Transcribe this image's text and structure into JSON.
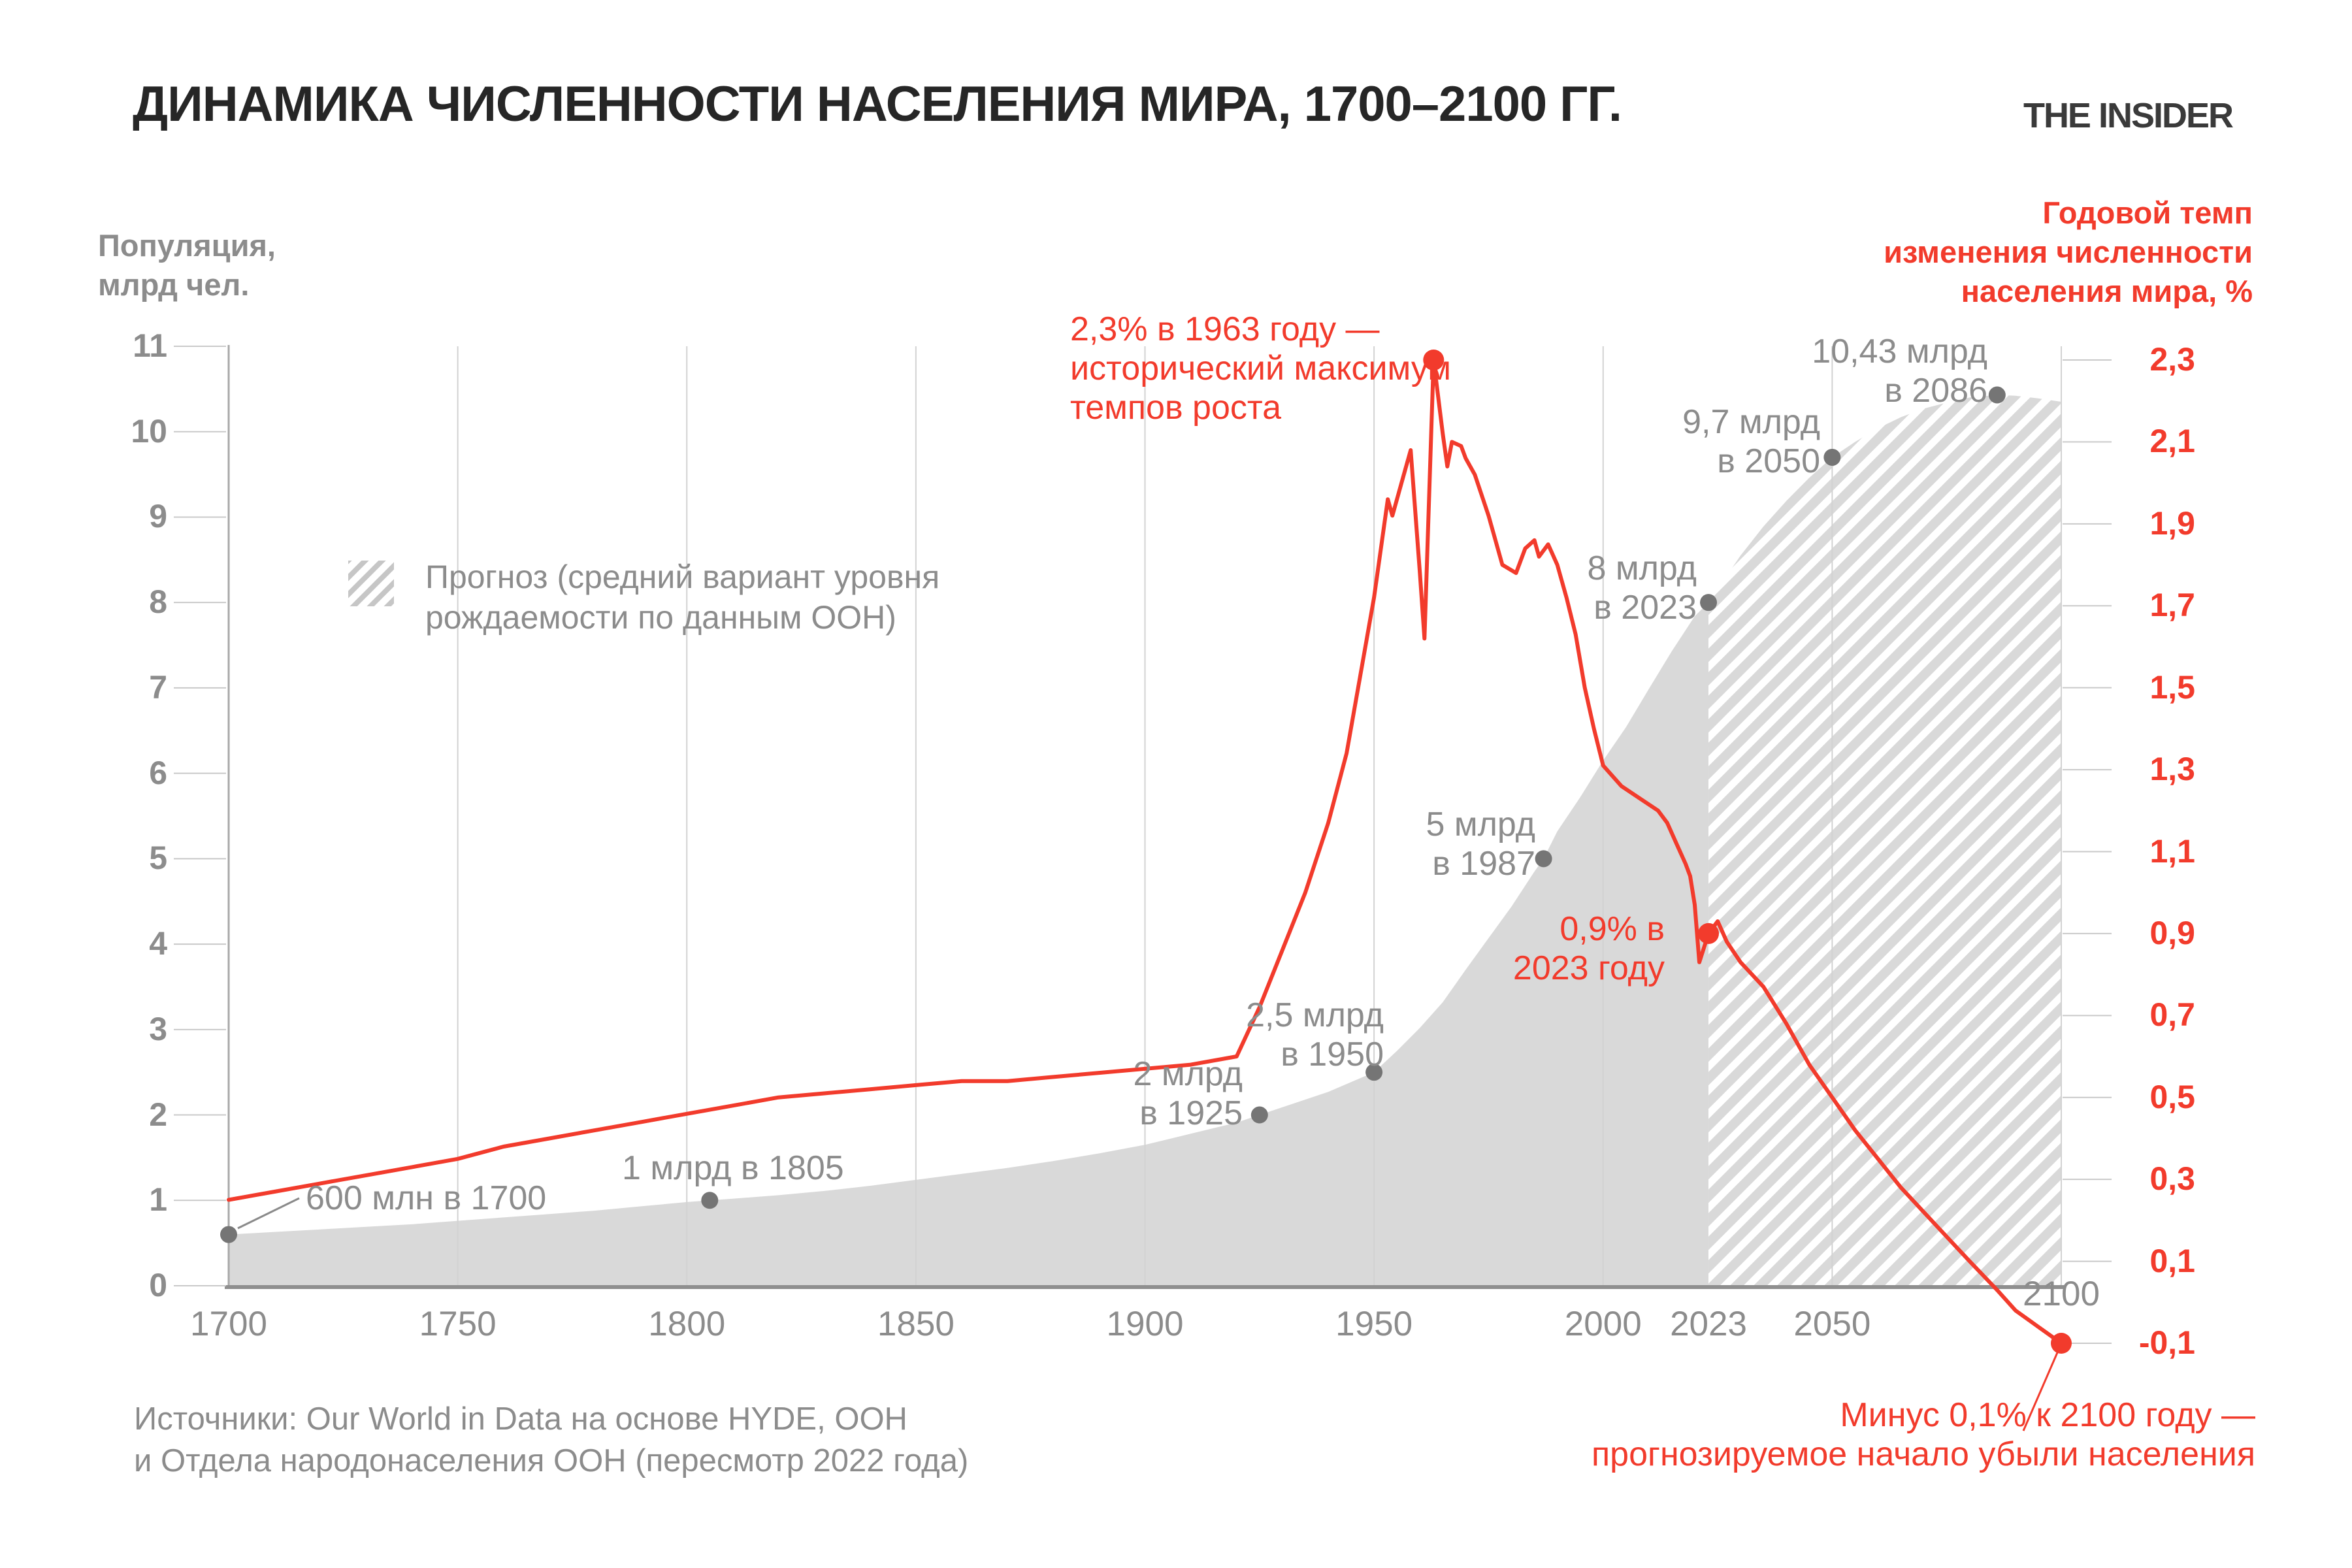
{
  "title": "ДИНАМИКА ЧИСЛЕННОСТИ НАСЕЛЕНИЯ МИРА, 1700–2100 ГГ.",
  "logo": "THE INSIDER",
  "colors": {
    "red": "#f23b2c",
    "area_gray": "#d9d9d9",
    "text_gray": "#8c8c8c",
    "title_dark": "#262626",
    "axis_line_gray": "#8f8f8f",
    "grid_gray": "#d2d2d2",
    "tick_gray": "#c9c9c9",
    "plot_border_gray": "#a9a9a9",
    "dot_gray": "#757575",
    "leader_gray": "#8a8a8a",
    "hatch_white": "#ffffff",
    "legend_hatch_gray": "#c6c6c6"
  },
  "left_axis": {
    "title_lines": [
      "Популяция,",
      "млрд чел."
    ],
    "ticks": [
      {
        "v": 0,
        "label": "0"
      },
      {
        "v": 1,
        "label": "1"
      },
      {
        "v": 2,
        "label": "2"
      },
      {
        "v": 3,
        "label": "3"
      },
      {
        "v": 4,
        "label": "4"
      },
      {
        "v": 5,
        "label": "5"
      },
      {
        "v": 6,
        "label": "6"
      },
      {
        "v": 7,
        "label": "7"
      },
      {
        "v": 8,
        "label": "8"
      },
      {
        "v": 9,
        "label": "9"
      },
      {
        "v": 10,
        "label": "10"
      },
      {
        "v": 11,
        "label": "11"
      }
    ]
  },
  "right_axis": {
    "title_lines": [
      "Годовой темп",
      "изменения численности",
      "населения мира, %"
    ],
    "ticks": [
      {
        "v": 2.3,
        "label": "2,3"
      },
      {
        "v": 2.1,
        "label": "2,1"
      },
      {
        "v": 1.9,
        "label": "1,9"
      },
      {
        "v": 1.7,
        "label": "1,7"
      },
      {
        "v": 1.5,
        "label": "1,5"
      },
      {
        "v": 1.3,
        "label": "1,3"
      },
      {
        "v": 1.1,
        "label": "1,1"
      },
      {
        "v": 0.9,
        "label": "0,9"
      },
      {
        "v": 0.7,
        "label": "0,7"
      },
      {
        "v": 0.5,
        "label": "0,5"
      },
      {
        "v": 0.3,
        "label": "0,3"
      },
      {
        "v": 0.1,
        "label": "0,1"
      },
      {
        "v": -0.1,
        "label": "-0,1"
      }
    ]
  },
  "x_axis": {
    "ticks": [
      {
        "year": 1700,
        "label": "1700"
      },
      {
        "year": 1750,
        "label": "1750"
      },
      {
        "year": 1800,
        "label": "1800"
      },
      {
        "year": 1850,
        "label": "1850"
      },
      {
        "year": 1900,
        "label": "1900"
      },
      {
        "year": 1950,
        "label": "1950"
      },
      {
        "year": 2000,
        "label": "2000"
      },
      {
        "year": 2023,
        "label": "2023"
      },
      {
        "year": 2050,
        "label": "2050"
      },
      {
        "year": 2100,
        "label": "2100"
      }
    ]
  },
  "legend": {
    "label_lines": [
      "Прогноз (средний вариант уровня",
      "рождаемости по данным ООН)"
    ]
  },
  "sources_lines": [
    "Источники: Our World in Data на основе HYDE, ООН",
    "и Отдела народонаселения ООН (пересмотр 2022 года)"
  ],
  "chart_data": {
    "type": "area+line",
    "title": "Динамика численности населения мира, 1700–2100",
    "x_range": [
      1700,
      2100
    ],
    "left_axis_range": [
      0,
      11
    ],
    "right_axis_range": [
      -0.1,
      2.3
    ],
    "forecast_from": 2023,
    "series": [
      {
        "name": "Население мира, млрд чел.",
        "style": "area",
        "axis": "left",
        "points": [
          [
            1700,
            0.6
          ],
          [
            1710,
            0.63
          ],
          [
            1720,
            0.66
          ],
          [
            1730,
            0.69
          ],
          [
            1740,
            0.72
          ],
          [
            1750,
            0.76
          ],
          [
            1760,
            0.8
          ],
          [
            1770,
            0.84
          ],
          [
            1780,
            0.88
          ],
          [
            1790,
            0.93
          ],
          [
            1800,
            0.98
          ],
          [
            1805,
            1.0
          ],
          [
            1810,
            1.02
          ],
          [
            1820,
            1.06
          ],
          [
            1830,
            1.11
          ],
          [
            1840,
            1.17
          ],
          [
            1850,
            1.24
          ],
          [
            1860,
            1.31
          ],
          [
            1870,
            1.38
          ],
          [
            1880,
            1.46
          ],
          [
            1890,
            1.55
          ],
          [
            1900,
            1.65
          ],
          [
            1910,
            1.78
          ],
          [
            1920,
            1.91
          ],
          [
            1925,
            2.0
          ],
          [
            1930,
            2.09
          ],
          [
            1940,
            2.27
          ],
          [
            1950,
            2.5
          ],
          [
            1955,
            2.75
          ],
          [
            1960,
            3.02
          ],
          [
            1965,
            3.32
          ],
          [
            1970,
            3.7
          ],
          [
            1975,
            4.07
          ],
          [
            1980,
            4.44
          ],
          [
            1985,
            4.85
          ],
          [
            1987,
            5.0
          ],
          [
            1990,
            5.32
          ],
          [
            1995,
            5.72
          ],
          [
            2000,
            6.15
          ],
          [
            2005,
            6.54
          ],
          [
            2010,
            6.99
          ],
          [
            2015,
            7.43
          ],
          [
            2020,
            7.84
          ],
          [
            2023,
            8.0
          ],
          [
            2030,
            8.55
          ],
          [
            2035,
            8.89
          ],
          [
            2040,
            9.19
          ],
          [
            2045,
            9.46
          ],
          [
            2050,
            9.7
          ],
          [
            2055,
            9.88
          ],
          [
            2060,
            10.04
          ],
          [
            2065,
            10.17
          ],
          [
            2070,
            10.27
          ],
          [
            2075,
            10.34
          ],
          [
            2080,
            10.4
          ],
          [
            2086,
            10.43
          ],
          [
            2090,
            10.42
          ],
          [
            2095,
            10.39
          ],
          [
            2100,
            10.35
          ]
        ]
      },
      {
        "name": "Годовой темп изменения численности населения мира, %",
        "style": "line",
        "axis": "right",
        "points": [
          [
            1700,
            0.25
          ],
          [
            1710,
            0.27
          ],
          [
            1720,
            0.29
          ],
          [
            1730,
            0.31
          ],
          [
            1740,
            0.33
          ],
          [
            1750,
            0.35
          ],
          [
            1760,
            0.38
          ],
          [
            1770,
            0.4
          ],
          [
            1780,
            0.42
          ],
          [
            1790,
            0.44
          ],
          [
            1800,
            0.46
          ],
          [
            1810,
            0.48
          ],
          [
            1820,
            0.5
          ],
          [
            1830,
            0.51
          ],
          [
            1840,
            0.52
          ],
          [
            1850,
            0.53
          ],
          [
            1860,
            0.54
          ],
          [
            1870,
            0.54
          ],
          [
            1880,
            0.55
          ],
          [
            1890,
            0.56
          ],
          [
            1900,
            0.57
          ],
          [
            1910,
            0.58
          ],
          [
            1920,
            0.6
          ],
          [
            1925,
            0.72
          ],
          [
            1930,
            0.86
          ],
          [
            1935,
            1.0
          ],
          [
            1940,
            1.17
          ],
          [
            1944,
            1.34
          ],
          [
            1947,
            1.53
          ],
          [
            1950,
            1.72
          ],
          [
            1953,
            1.96
          ],
          [
            1954,
            1.92
          ],
          [
            1956,
            2.0
          ],
          [
            1958,
            2.08
          ],
          [
            1960,
            1.78
          ],
          [
            1961,
            1.62
          ],
          [
            1963,
            2.3
          ],
          [
            1965,
            2.12
          ],
          [
            1966,
            2.04
          ],
          [
            1967,
            2.1
          ],
          [
            1969,
            2.09
          ],
          [
            1970,
            2.06
          ],
          [
            1972,
            2.02
          ],
          [
            1975,
            1.92
          ],
          [
            1978,
            1.8
          ],
          [
            1981,
            1.78
          ],
          [
            1983,
            1.84
          ],
          [
            1985,
            1.86
          ],
          [
            1986,
            1.82
          ],
          [
            1988,
            1.85
          ],
          [
            1990,
            1.8
          ],
          [
            1992,
            1.72
          ],
          [
            1994,
            1.63
          ],
          [
            1996,
            1.5
          ],
          [
            1998,
            1.4
          ],
          [
            2000,
            1.31
          ],
          [
            2004,
            1.26
          ],
          [
            2008,
            1.23
          ],
          [
            2012,
            1.2
          ],
          [
            2014,
            1.17
          ],
          [
            2016,
            1.12
          ],
          [
            2018,
            1.07
          ],
          [
            2019,
            1.04
          ],
          [
            2020,
            0.97
          ],
          [
            2021,
            0.83
          ],
          [
            2023,
            0.9
          ],
          [
            2025,
            0.93
          ],
          [
            2027,
            0.88
          ],
          [
            2030,
            0.83
          ],
          [
            2035,
            0.77
          ],
          [
            2040,
            0.68
          ],
          [
            2045,
            0.58
          ],
          [
            2050,
            0.5
          ],
          [
            2055,
            0.42
          ],
          [
            2060,
            0.35
          ],
          [
            2065,
            0.28
          ],
          [
            2070,
            0.22
          ],
          [
            2075,
            0.16
          ],
          [
            2080,
            0.1
          ],
          [
            2086,
            0.03
          ],
          [
            2090,
            -0.02
          ],
          [
            2095,
            -0.06
          ],
          [
            2100,
            -0.1
          ]
        ]
      }
    ],
    "markers": {
      "population": [
        {
          "id": "m1700",
          "year": 1700,
          "value": 0.6,
          "lines": [
            "600 млн в 1700"
          ]
        },
        {
          "id": "m1805",
          "year": 1805,
          "value": 1.0,
          "lines": [
            "1 млрд в 1805"
          ]
        },
        {
          "id": "m1925",
          "year": 1925,
          "value": 2.0,
          "lines": [
            "2 млрд",
            "в 1925"
          ]
        },
        {
          "id": "m1950",
          "year": 1950,
          "value": 2.5,
          "lines": [
            "2,5 млрд",
            "в 1950"
          ]
        },
        {
          "id": "m1987",
          "year": 1987,
          "value": 5.0,
          "lines": [
            "5 млрд",
            "в 1987"
          ]
        },
        {
          "id": "m2023",
          "year": 2023,
          "value": 8.0,
          "lines": [
            "8 млрд",
            "в 2023"
          ]
        },
        {
          "id": "m2050",
          "year": 2050,
          "value": 9.7,
          "lines": [
            "9,7 млрд",
            "в 2050"
          ]
        },
        {
          "id": "m2086",
          "year": 2086,
          "value": 10.43,
          "lines": [
            "10,43 млрд",
            "в 2086"
          ]
        }
      ],
      "growth": [
        {
          "id": "g1963",
          "year": 1963,
          "value": 2.3,
          "lines": [
            "2,3% в 1963 году —",
            "исторический максимум",
            "темпов роста"
          ]
        },
        {
          "id": "g2023",
          "year": 2023,
          "value": 0.9,
          "lines": [
            "0,9% в",
            "2023 году"
          ]
        },
        {
          "id": "g2100",
          "year": 2100,
          "value": -0.1,
          "lines": [
            "Минус 0,1% к 2100 году —",
            "прогнозируемое начало убыли населения"
          ]
        }
      ]
    }
  }
}
